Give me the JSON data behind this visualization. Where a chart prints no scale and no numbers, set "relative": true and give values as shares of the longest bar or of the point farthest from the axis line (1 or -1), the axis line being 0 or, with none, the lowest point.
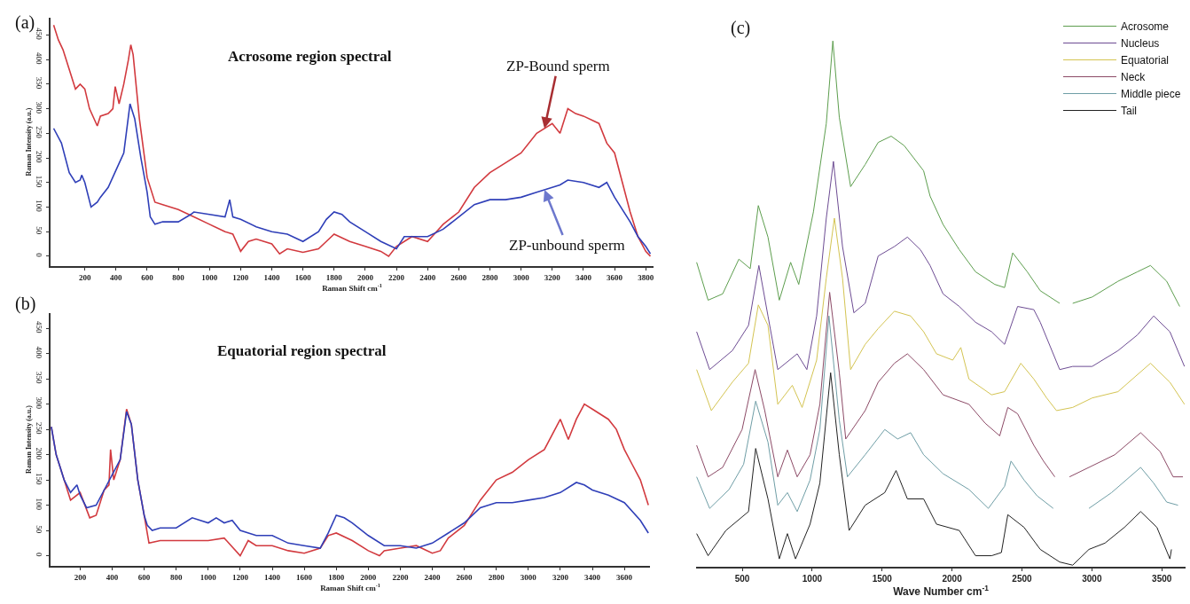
{
  "chart_data": [
    {
      "type": "line",
      "title": "Acrosome region spectral",
      "xlabel": "Raman Shift cm$^{-1}$",
      "ylabel": "Raman Intensity (a.u.)",
      "annotations": [
        "(a)",
        {
          "text": "ZP-Bound sperm",
          "x": 3150,
          "y": 260
        },
        {
          "text": "ZP-unbound sperm",
          "x": 3150,
          "y": 135
        }
      ],
      "xlim": [
        -20,
        3850
      ],
      "ylim": [
        -20,
        485
      ],
      "xticks": [
        200,
        400,
        600,
        800,
        1000,
        1200,
        1400,
        1600,
        1800,
        2000,
        2200,
        2400,
        2600,
        2800,
        3000,
        3200,
        3400,
        3600,
        3800
      ],
      "yticks": [
        0,
        50,
        100,
        150,
        200,
        250,
        300,
        350,
        400,
        450
      ],
      "legend": false,
      "series": [
        {
          "color": "#d23a3f",
          "x": [
            0,
            30,
            60,
            100,
            140,
            170,
            200,
            230,
            280,
            300,
            350,
            380,
            395,
            420,
            450,
            480,
            495,
            510,
            550,
            600,
            650,
            700,
            800,
            900,
            1000,
            1100,
            1150,
            1200,
            1250,
            1300,
            1400,
            1450,
            1500,
            1600,
            1700,
            1750,
            1800,
            1900,
            2000,
            2100,
            2150,
            2200,
            2300,
            2400,
            2500,
            2600,
            2700,
            2800,
            2900,
            3000,
            3100,
            3200,
            3250,
            3300,
            3350,
            3400,
            3500,
            3550,
            3600,
            3650,
            3700,
            3750,
            3800,
            3830
          ],
          "values": [
            470,
            440,
            420,
            380,
            340,
            350,
            340,
            300,
            265,
            285,
            290,
            300,
            345,
            310,
            350,
            400,
            430,
            410,
            280,
            160,
            110,
            105,
            95,
            80,
            65,
            50,
            45,
            10,
            30,
            35,
            25,
            5,
            15,
            8,
            15,
            30,
            45,
            30,
            20,
            10,
            0,
            20,
            40,
            30,
            65,
            90,
            140,
            170,
            190,
            210,
            250,
            270,
            250,
            300,
            290,
            285,
            270,
            230,
            210,
            150,
            90,
            40,
            10,
            0
          ]
        },
        {
          "color": "#2f3fb8",
          "x": [
            0,
            50,
            100,
            140,
            170,
            180,
            200,
            240,
            280,
            300,
            350,
            400,
            450,
            490,
            520,
            560,
            600,
            620,
            650,
            700,
            800,
            880,
            900,
            1000,
            1100,
            1130,
            1150,
            1200,
            1300,
            1400,
            1500,
            1600,
            1700,
            1750,
            1800,
            1850,
            1900,
            2000,
            2100,
            2200,
            2250,
            2300,
            2400,
            2500,
            2600,
            2700,
            2800,
            2900,
            3000,
            3100,
            3200,
            3250,
            3300,
            3400,
            3500,
            3550,
            3600,
            3700,
            3750,
            3800,
            3830
          ],
          "values": [
            260,
            230,
            170,
            150,
            155,
            165,
            150,
            100,
            110,
            120,
            140,
            175,
            210,
            310,
            280,
            200,
            130,
            80,
            65,
            70,
            70,
            85,
            90,
            85,
            80,
            115,
            80,
            75,
            60,
            50,
            45,
            30,
            50,
            75,
            90,
            85,
            70,
            50,
            30,
            15,
            40,
            40,
            40,
            55,
            80,
            105,
            115,
            115,
            120,
            130,
            140,
            145,
            155,
            150,
            140,
            150,
            120,
            70,
            40,
            20,
            5
          ]
        }
      ]
    },
    {
      "type": "line",
      "title": "Equatorial region spectral",
      "xlabel": "Raman Shift cm$^{-1}$",
      "ylabel": "Raman Intensity (a.u.)",
      "annotations": [
        "(b)"
      ],
      "xlim": [
        15,
        3760
      ],
      "ylim": [
        -20,
        480
      ],
      "xticks": [
        200,
        400,
        600,
        800,
        1000,
        1200,
        1400,
        1600,
        1800,
        2000,
        2200,
        2400,
        2600,
        2800,
        3000,
        3200,
        3400,
        3600
      ],
      "yticks": [
        0,
        50,
        100,
        150,
        200,
        250,
        300,
        350,
        400,
        450
      ],
      "legend": false,
      "series": [
        {
          "color": "#d23a3f",
          "x": [
            20,
            50,
            100,
            140,
            200,
            230,
            260,
            300,
            350,
            380,
            390,
            410,
            450,
            490,
            520,
            560,
            600,
            630,
            700,
            800,
            900,
            1000,
            1100,
            1200,
            1250,
            1300,
            1400,
            1500,
            1600,
            1700,
            1750,
            1800,
            1900,
            2000,
            2070,
            2100,
            2200,
            2300,
            2400,
            2450,
            2500,
            2600,
            2700,
            2800,
            2900,
            3000,
            3100,
            3200,
            3250,
            3300,
            3350,
            3400,
            3500,
            3550,
            3600,
            3650,
            3700,
            3750
          ],
          "values": [
            255,
            200,
            150,
            110,
            125,
            100,
            75,
            80,
            130,
            140,
            210,
            150,
            190,
            290,
            260,
            150,
            80,
            25,
            30,
            30,
            30,
            30,
            35,
            0,
            30,
            20,
            20,
            10,
            5,
            15,
            40,
            45,
            30,
            10,
            0,
            10,
            15,
            20,
            5,
            10,
            35,
            60,
            110,
            150,
            165,
            190,
            210,
            270,
            230,
            270,
            300,
            290,
            270,
            250,
            210,
            180,
            150,
            100
          ]
        },
        {
          "color": "#2f3fb8",
          "x": [
            20,
            50,
            100,
            140,
            180,
            200,
            240,
            300,
            350,
            400,
            450,
            490,
            520,
            560,
            600,
            620,
            650,
            700,
            800,
            900,
            1000,
            1050,
            1100,
            1150,
            1200,
            1300,
            1400,
            1500,
            1600,
            1700,
            1750,
            1800,
            1850,
            1900,
            2000,
            2100,
            2200,
            2300,
            2400,
            2500,
            2600,
            2700,
            2800,
            2900,
            3000,
            3100,
            3200,
            3300,
            3350,
            3400,
            3500,
            3600,
            3700,
            3750
          ],
          "values": [
            255,
            200,
            150,
            125,
            140,
            120,
            95,
            100,
            130,
            160,
            190,
            285,
            260,
            150,
            80,
            60,
            50,
            55,
            55,
            75,
            65,
            75,
            65,
            70,
            50,
            40,
            40,
            25,
            20,
            15,
            45,
            80,
            75,
            65,
            40,
            20,
            20,
            15,
            25,
            45,
            65,
            95,
            105,
            105,
            110,
            115,
            125,
            145,
            140,
            130,
            120,
            105,
            70,
            45
          ]
        }
      ]
    },
    {
      "type": "line",
      "xlabel": "Wave Number cm$^{-1}$",
      "annotations": [
        "(c)"
      ],
      "relative": true,
      "tick_labels": "x",
      "xlim": [
        170,
        3670
      ],
      "xticks": [
        500,
        1000,
        1500,
        2000,
        2500,
        3000,
        3500
      ],
      "legend": "top right",
      "series": [
        {
          "name": "Acrosome",
          "color": "#5d9e4e",
          "x": [
            174,
            256,
            360,
            476,
            557,
            615,
            684,
            765,
            846,
            904,
            1009,
            1101,
            1148,
            1194,
            1275,
            1379,
            1472,
            1565,
            1658,
            1797,
            1843,
            1936,
            2052,
            2168,
            2306,
            2376,
            2434,
            2538,
            2631,
            2770,
            2793,
            2863,
            3002,
            3187,
            3326,
            3419,
            3535,
            3628
          ],
          "values": [
            0.579,
            0.507,
            0.519,
            0.585,
            0.567,
            0.687,
            0.627,
            0.507,
            0.579,
            0.537,
            0.675,
            0.843,
            1.0,
            0.855,
            0.723,
            0.765,
            0.807,
            0.819,
            0.801,
            0.753,
            0.705,
            0.651,
            0.603,
            0.561,
            0.537,
            0.531,
            0.597,
            0.561,
            0.525,
            0.501,
            null,
            0.501,
            0.513,
            0.543,
            0.561,
            0.573,
            0.543,
            0.495
          ]
        },
        {
          "name": "Nucleus",
          "color": "#6d4c93",
          "x": [
            174,
            267,
            429,
            545,
            619,
            684,
            754,
            893,
            962,
            1032,
            1101,
            1152,
            1217,
            1298,
            1379,
            1472,
            1588,
            1681,
            1774,
            1843,
            1936,
            2052,
            2168,
            2283,
            2376,
            2469,
            2585,
            2631,
            2770,
            2863,
            3002,
            3187,
            3326,
            3442,
            3558,
            3662
          ],
          "values": [
            0.447,
            0.375,
            0.411,
            0.459,
            0.573,
            0.477,
            0.375,
            0.405,
            0.375,
            0.477,
            0.663,
            0.771,
            0.609,
            0.483,
            0.501,
            0.591,
            0.609,
            0.627,
            0.603,
            0.573,
            0.519,
            0.495,
            0.465,
            0.447,
            0.423,
            0.495,
            0.489,
            0.465,
            0.375,
            0.381,
            0.381,
            0.411,
            0.441,
            0.477,
            0.447,
            0.381
          ]
        },
        {
          "name": "Equatorial",
          "color": "#d4c452",
          "x": [
            174,
            279,
            429,
            545,
            615,
            684,
            754,
            858,
            928,
            1032,
            1101,
            1159,
            1217,
            1275,
            1379,
            1472,
            1588,
            1704,
            1797,
            1889,
            2005,
            2063,
            2121,
            2283,
            2376,
            2492,
            2585,
            2677,
            2747,
            2863,
            3002,
            3187,
            3419,
            3558,
            3662
          ],
          "values": [
            0.375,
            0.297,
            0.351,
            0.387,
            0.498,
            0.459,
            0.309,
            0.345,
            0.303,
            0.393,
            0.549,
            0.663,
            0.549,
            0.375,
            0.423,
            0.453,
            0.486,
            0.477,
            0.447,
            0.405,
            0.393,
            0.417,
            0.357,
            0.327,
            0.333,
            0.387,
            0.357,
            0.321,
            0.297,
            0.303,
            0.321,
            0.333,
            0.387,
            0.351,
            0.309
          ]
        },
        {
          "name": "Neck",
          "color": "#8c4a66",
          "x": [
            174,
            256,
            360,
            499,
            592,
            661,
            754,
            823,
            893,
            985,
            1055,
            1125,
            1194,
            1240,
            1379,
            1472,
            1588,
            1681,
            1797,
            1936,
            2121,
            2237,
            2341,
            2399,
            2469,
            2585,
            2654,
            2735,
            2770,
            2840,
            2979,
            3164,
            3349,
            3488,
            3581,
            3651
          ],
          "values": [
            0.231,
            0.171,
            0.189,
            0.261,
            0.375,
            0.297,
            0.171,
            0.222,
            0.171,
            0.213,
            0.309,
            0.522,
            0.369,
            0.243,
            0.297,
            0.351,
            0.387,
            0.405,
            0.375,
            0.327,
            0.309,
            0.273,
            0.249,
            0.303,
            0.291,
            0.231,
            0.201,
            0.171,
            null,
            0.171,
            0.189,
            0.213,
            0.255,
            0.219,
            0.171,
            0.171
          ]
        },
        {
          "name": "Middle piece",
          "color": "#6f9ea6",
          "x": [
            174,
            267,
            406,
            510,
            596,
            684,
            754,
            823,
            893,
            985,
            1055,
            1120,
            1194,
            1252,
            1379,
            1519,
            1611,
            1704,
            1797,
            1936,
            2121,
            2260,
            2376,
            2422,
            2515,
            2608,
            2724,
            2793,
            2979,
            3141,
            3349,
            3442,
            3535,
            3616
          ],
          "values": [
            0.171,
            0.111,
            0.147,
            0.195,
            0.315,
            0.237,
            0.117,
            0.141,
            0.105,
            0.165,
            0.261,
            0.477,
            0.279,
            0.171,
            0.213,
            0.261,
            0.243,
            0.255,
            0.213,
            0.177,
            0.147,
            0.111,
            0.153,
            0.201,
            0.165,
            0.135,
            0.111,
            null,
            0.111,
            0.141,
            0.189,
            0.159,
            0.123,
            0.117
          ]
        },
        {
          "name": "Tail",
          "color": "#222222",
          "x": [
            174,
            256,
            383,
            545,
            596,
            684,
            765,
            823,
            881,
            985,
            1055,
            1132,
            1194,
            1264,
            1379,
            1519,
            1600,
            1681,
            1797,
            1889,
            2052,
            2168,
            2283,
            2353,
            2399,
            2515,
            2631,
            2770,
            2863,
            2979,
            3094,
            3233,
            3349,
            3465,
            3558,
            3569
          ],
          "values": [
            0.063,
            0.021,
            0.069,
            0.105,
            0.225,
            0.129,
            0.015,
            0.063,
            0.015,
            0.081,
            0.159,
            0.369,
            0.213,
            0.069,
            0.117,
            0.141,
            0.183,
            0.129,
            0.129,
            0.081,
            0.069,
            0.021,
            0.021,
            0.027,
            0.099,
            0.075,
            0.033,
            0.009,
            0.003,
            0.033,
            0.045,
            0.075,
            0.105,
            0.075,
            0.015,
            0.033
          ]
        }
      ]
    }
  ]
}
